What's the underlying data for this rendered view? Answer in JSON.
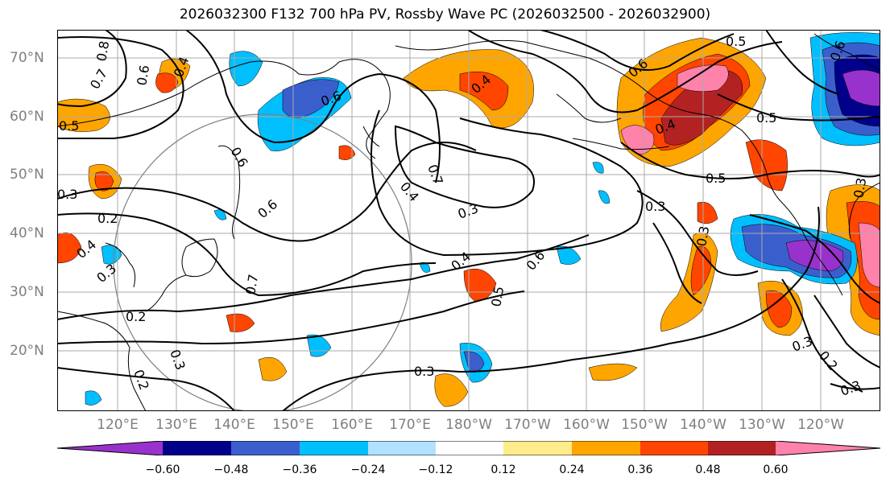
{
  "title": "2026032300 F132 700 hPa PV, Rossby Wave PC (2026032500 - 2026032900)",
  "lat_labels": [
    "70°N",
    "60°N",
    "50°N",
    "40°N",
    "30°N",
    "20°N"
  ],
  "lon_labels": [
    "120°E",
    "130°E",
    "140°E",
    "150°E",
    "160°E",
    "170°E",
    "180°W",
    "170°W",
    "160°W",
    "150°W",
    "140°W",
    "130°W",
    "120°W"
  ],
  "colorbar": {
    "ticks": [
      "−0.60",
      "−0.48",
      "−0.36",
      "−0.24",
      "−0.12",
      "0.12",
      "0.24",
      "0.36",
      "0.48",
      "0.60"
    ],
    "colors": [
      "#9932cc",
      "#00008b",
      "#3a5fcd",
      "#00bfff",
      "#b0e2ff",
      "#ffffff",
      "#ffec8b",
      "#ffa500",
      "#ff4500",
      "#b22222",
      "#ff82ab"
    ]
  },
  "contour_labels": [
    "0.8",
    "0.7",
    "0.6",
    "0.4",
    "0.5",
    "0.6",
    "0.4",
    "0.6",
    "0.5",
    "0.6",
    "0.4",
    "0.5",
    "0.5",
    "0.3",
    "0.2",
    "0.4",
    "0.3",
    "0.6",
    "0.7",
    "0.6",
    "0.7",
    "0.4",
    "0.3",
    "0.4",
    "0.6",
    "0.5",
    "0.3",
    "0.3",
    "0.2",
    "0.3",
    "0.2",
    "0.3",
    "0.3",
    "0.2",
    "0.3",
    "0.3"
  ],
  "anomaly_colors": {
    "neg1": "#b0e2ff",
    "neg2": "#00bfff",
    "neg3": "#3a5fcd",
    "neg4": "#00008b",
    "neg5": "#9932cc",
    "pos1": "#ffec8b",
    "pos2": "#ffa500",
    "pos3": "#ff4500",
    "pos4": "#b22222",
    "pos5": "#ff82ab"
  }
}
